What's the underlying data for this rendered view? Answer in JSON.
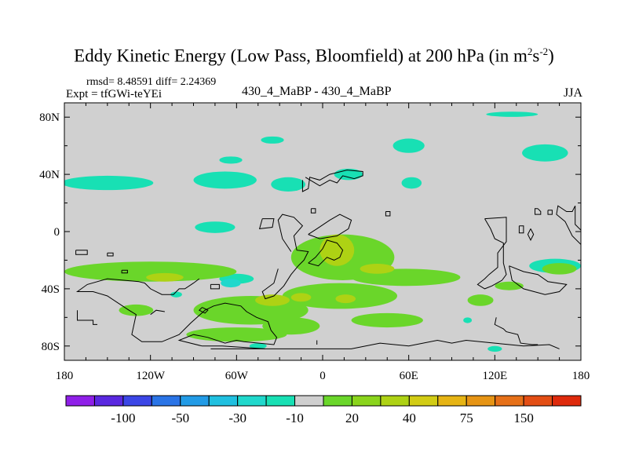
{
  "title": {
    "main": "Eddy Kinetic Energy (Low Pass, Bloomfield) at 200 hPa (in m",
    "sup1": "2",
    "mid": "s",
    "sup2": "-2",
    "close": ")"
  },
  "stats": "rmsd= 8.48591 diff= 2.24369",
  "experiment": "Expt = tfGWi-teYEi",
  "center_label": "430_4_MaBP - 430_4_MaBP",
  "season": "JJA",
  "chart_data": {
    "type": "heatmap",
    "projection": "cylindrical equidistant",
    "x_range": [
      -180,
      180
    ],
    "y_range": [
      -90,
      90
    ],
    "xticks": [
      {
        "value": -180,
        "label": "180"
      },
      {
        "value": -120,
        "label": "120W"
      },
      {
        "value": -60,
        "label": "60W"
      },
      {
        "value": 0,
        "label": "0"
      },
      {
        "value": 60,
        "label": "60E"
      },
      {
        "value": 120,
        "label": "120E"
      },
      {
        "value": 180,
        "label": "180"
      }
    ],
    "yticks": [
      {
        "value": 80,
        "label": "80N"
      },
      {
        "value": 40,
        "label": "40N"
      },
      {
        "value": 0,
        "label": "0"
      },
      {
        "value": -40,
        "label": "40S"
      },
      {
        "value": -80,
        "label": "80S"
      }
    ],
    "background_color": "#d0d0d0",
    "colorbar": {
      "colors": [
        "#8f1fe8",
        "#5a28e0",
        "#3b46e6",
        "#2a74e6",
        "#229be6",
        "#20c0e0",
        "#20d8cc",
        "#18e0b4",
        "#cfcfcf",
        "#6ad62a",
        "#8ad41c",
        "#aed214",
        "#d2cc14",
        "#e6b414",
        "#e69414",
        "#e67018",
        "#e34e14",
        "#de2a0c"
      ],
      "labels": [
        {
          "after_box": 2,
          "text": "-100"
        },
        {
          "after_box": 4,
          "text": "-50"
        },
        {
          "after_box": 6,
          "text": "-30"
        },
        {
          "after_box": 8,
          "text": "-10"
        },
        {
          "after_box": 10,
          "text": "20"
        },
        {
          "after_box": 12,
          "text": "40"
        },
        {
          "after_box": 14,
          "text": "75"
        },
        {
          "after_box": 16,
          "text": "150"
        }
      ]
    },
    "regions": [
      {
        "lon": -150,
        "lat": 34,
        "rx": 32,
        "ry": 5,
        "level": -10
      },
      {
        "lon": -68,
        "lat": 36,
        "rx": 22,
        "ry": 6,
        "level": -10
      },
      {
        "lon": -24,
        "lat": 33,
        "rx": 12,
        "ry": 5,
        "level": -10
      },
      {
        "lon": -64,
        "lat": 50,
        "rx": 8,
        "ry": 2.5,
        "level": -10
      },
      {
        "lon": -35,
        "lat": 64,
        "rx": 8,
        "ry": 2.5,
        "level": -10
      },
      {
        "lon": 60,
        "lat": 60,
        "rx": 11,
        "ry": 5,
        "level": -10
      },
      {
        "lon": 155,
        "lat": 55,
        "rx": 16,
        "ry": 6,
        "level": -10
      },
      {
        "lon": 132,
        "lat": 82,
        "rx": 18,
        "ry": 1.8,
        "level": -10
      },
      {
        "lon": 18,
        "lat": 40,
        "rx": 10,
        "ry": 4,
        "level": -10
      },
      {
        "lon": 62,
        "lat": 34,
        "rx": 7,
        "ry": 4,
        "level": -10
      },
      {
        "lon": -75,
        "lat": 3,
        "rx": 14,
        "ry": 4,
        "level": -10
      },
      {
        "lon": 162,
        "lat": -24,
        "rx": 18,
        "ry": 5,
        "level": -10
      },
      {
        "lon": -60,
        "lat": -33,
        "rx": 12,
        "ry": 3.5,
        "level": -10
      },
      {
        "lon": 14,
        "lat": -18,
        "rx": 36,
        "ry": 16,
        "level": 20
      },
      {
        "lon": 58,
        "lat": -32,
        "rx": 38,
        "ry": 6,
        "level": 20
      },
      {
        "lon": -120,
        "lat": -28,
        "rx": 60,
        "ry": 7,
        "level": 20
      },
      {
        "lon": 12,
        "lat": -45,
        "rx": 40,
        "ry": 9,
        "level": 20
      },
      {
        "lon": -50,
        "lat": -55,
        "rx": 40,
        "ry": 10,
        "level": 20
      },
      {
        "lon": -22,
        "lat": -66,
        "rx": 20,
        "ry": 6,
        "level": 20
      },
      {
        "lon": 45,
        "lat": -62,
        "rx": 25,
        "ry": 5,
        "level": 20
      },
      {
        "lon": 110,
        "lat": -48,
        "rx": 9,
        "ry": 4,
        "level": 20
      },
      {
        "lon": 165,
        "lat": -26,
        "rx": 12,
        "ry": 4,
        "level": 20
      },
      {
        "lon": -130,
        "lat": -55,
        "rx": 12,
        "ry": 4,
        "level": 20
      },
      {
        "lon": -60,
        "lat": -72,
        "rx": 35,
        "ry": 5,
        "level": 20
      },
      {
        "lon": 130,
        "lat": -38,
        "rx": 10,
        "ry": 3,
        "level": 20
      },
      {
        "lon": 10,
        "lat": -13,
        "rx": 12,
        "ry": 11,
        "level": 40
      },
      {
        "lon": -110,
        "lat": -32,
        "rx": 13,
        "ry": 3,
        "level": 40
      },
      {
        "lon": 38,
        "lat": -26,
        "rx": 12,
        "ry": 3.5,
        "level": 40
      },
      {
        "lon": -35,
        "lat": -48,
        "rx": 12,
        "ry": 4,
        "level": 40
      },
      {
        "lon": -15,
        "lat": -46,
        "rx": 7,
        "ry": 3,
        "level": 40
      },
      {
        "lon": -64,
        "lat": -36,
        "rx": 7,
        "ry": 3,
        "level": -30
      },
      {
        "lon": 16,
        "lat": -47,
        "rx": 7,
        "ry": 3,
        "level": 40
      },
      {
        "lon": 101,
        "lat": -62,
        "rx": 3,
        "ry": 2,
        "level": -10
      },
      {
        "lon": -102,
        "lat": -44,
        "rx": 4,
        "ry": 2,
        "level": -10
      },
      {
        "lon": 120,
        "lat": -82,
        "rx": 5,
        "ry": 2,
        "level": -10
      },
      {
        "lon": -45,
        "lat": -80,
        "rx": 6,
        "ry": 2,
        "level": -10
      }
    ],
    "coastlines": [
      [
        [
          -128,
          -35
        ],
        [
          -150,
          -33
        ],
        [
          -164,
          -37
        ],
        [
          -171,
          -42
        ],
        [
          -160,
          -42
        ],
        [
          -150,
          -45
        ],
        [
          -135,
          -55
        ],
        [
          -130,
          -58
        ],
        [
          -133,
          -72
        ],
        [
          -126,
          -77
        ],
        [
          -112,
          -77
        ],
        [
          -100,
          -72
        ],
        [
          -92,
          -64
        ],
        [
          -82,
          -55
        ],
        [
          -76,
          -52
        ],
        [
          -68,
          -50
        ],
        [
          -57,
          -52
        ],
        [
          -53,
          -56
        ],
        [
          -46,
          -60
        ],
        [
          -38,
          -63
        ],
        [
          -36,
          -69
        ],
        [
          -32,
          -74
        ],
        [
          -34,
          -79
        ],
        [
          -55,
          -77
        ],
        [
          -60,
          -76
        ],
        [
          -68,
          -78
        ],
        [
          -80,
          -74
        ],
        [
          -90,
          -72
        ],
        [
          -100,
          -76
        ],
        [
          -84,
          -80
        ],
        [
          -70,
          -80
        ],
        [
          -40,
          -82
        ]
      ],
      [
        [
          -78,
          -82
        ],
        [
          20,
          -82
        ],
        [
          40,
          -78
        ],
        [
          60,
          -80
        ],
        [
          80,
          -76
        ],
        [
          90,
          -78
        ],
        [
          100,
          -76
        ],
        [
          120,
          -78
        ],
        [
          140,
          -80
        ],
        [
          158,
          -79
        ],
        [
          165,
          -82
        ]
      ],
      [
        [
          -4,
          -79
        ],
        [
          -4,
          -76
        ]
      ],
      [
        [
          -31,
          -26
        ],
        [
          -34,
          -36
        ],
        [
          -42,
          -42
        ],
        [
          -40,
          -47
        ],
        [
          -34,
          -45
        ],
        [
          -27,
          -38
        ],
        [
          -22,
          -30
        ],
        [
          -17,
          -24
        ],
        [
          -13,
          -20
        ],
        [
          -10,
          -14
        ],
        [
          -18,
          -13
        ],
        [
          -20,
          -3
        ],
        [
          -14,
          4
        ],
        [
          -20,
          10
        ],
        [
          -28,
          12
        ],
        [
          -31,
          8
        ],
        [
          -28,
          -5
        ],
        [
          -22,
          -14
        ]
      ],
      [
        [
          -10,
          -2
        ],
        [
          -2,
          -5
        ],
        [
          10,
          -3
        ],
        [
          18,
          2
        ],
        [
          20,
          8
        ],
        [
          12,
          12
        ],
        [
          5,
          8
        ],
        [
          -4,
          2
        ],
        [
          -10,
          -2
        ]
      ],
      [
        [
          -10,
          -22
        ],
        [
          -5,
          -18
        ],
        [
          0,
          -12
        ],
        [
          3,
          -6
        ],
        [
          10,
          -8
        ],
        [
          14,
          -13
        ],
        [
          12,
          -18
        ],
        [
          8,
          -20
        ],
        [
          3,
          -18
        ],
        [
          -3,
          -24
        ],
        [
          -10,
          -22
        ]
      ],
      [
        [
          -14,
          36
        ],
        [
          -14,
          28
        ],
        [
          -10,
          30
        ],
        [
          -9,
          38
        ],
        [
          -2,
          36
        ],
        [
          5,
          40
        ],
        [
          17,
          43
        ],
        [
          28,
          42
        ],
        [
          28,
          39
        ],
        [
          22,
          37
        ],
        [
          14,
          39
        ],
        [
          10,
          34
        ],
        [
          5,
          36
        ],
        [
          -2,
          32
        ],
        [
          -12,
          38
        ]
      ],
      [
        [
          44,
          14
        ],
        [
          47,
          14
        ],
        [
          47,
          11
        ],
        [
          44,
          11
        ],
        [
          44,
          14
        ]
      ],
      [
        [
          -42,
          9
        ],
        [
          -44,
          2
        ],
        [
          -35,
          3
        ],
        [
          -34,
          9
        ],
        [
          -42,
          9
        ]
      ],
      [
        [
          -150,
          -15
        ],
        [
          -150,
          -17
        ],
        [
          -146,
          -17
        ],
        [
          -146,
          -15
        ],
        [
          -150,
          -15
        ]
      ],
      [
        [
          -172,
          -13
        ],
        [
          -172,
          -16
        ],
        [
          -164,
          -16
        ],
        [
          -164,
          -13
        ],
        [
          -172,
          -13
        ]
      ],
      [
        [
          -140,
          -27
        ],
        [
          -140,
          -29
        ],
        [
          -136,
          -29
        ],
        [
          -136,
          -27
        ],
        [
          -140,
          -27
        ]
      ],
      [
        [
          -78,
          -37
        ],
        [
          -72,
          -37
        ],
        [
          -72,
          -40
        ],
        [
          -78,
          -40
        ],
        [
          -78,
          -37
        ]
      ],
      [
        [
          -84,
          -53
        ],
        [
          -86,
          -55
        ],
        [
          -82,
          -57
        ],
        [
          -80,
          -55
        ],
        [
          -84,
          -53
        ]
      ],
      [
        [
          113,
          9
        ],
        [
          128,
          10
        ],
        [
          128,
          -7
        ],
        [
          122,
          -15
        ],
        [
          122,
          -25
        ],
        [
          116,
          -30
        ],
        [
          113,
          -33
        ],
        [
          108,
          -37
        ],
        [
          113,
          -40
        ],
        [
          118,
          -38
        ],
        [
          125,
          -34
        ],
        [
          128,
          -30
        ],
        [
          126,
          -22
        ],
        [
          126,
          -8
        ],
        [
          120,
          -5
        ],
        [
          117,
          2
        ],
        [
          113,
          9
        ]
      ],
      [
        [
          130,
          -24
        ],
        [
          140,
          -28
        ],
        [
          150,
          -30
        ],
        [
          157,
          -35
        ],
        [
          170,
          -37
        ],
        [
          165,
          -42
        ],
        [
          155,
          -44
        ],
        [
          140,
          -40
        ],
        [
          132,
          -34
        ],
        [
          130,
          -24
        ]
      ],
      [
        [
          137,
          4
        ],
        [
          137,
          -1
        ],
        [
          140,
          -1
        ],
        [
          140,
          4
        ],
        [
          137,
          4
        ]
      ],
      [
        [
          145,
          2
        ],
        [
          143,
          -2
        ],
        [
          145,
          -6
        ],
        [
          147,
          -2
        ],
        [
          145,
          2
        ]
      ],
      [
        [
          150,
          16
        ],
        [
          152,
          14
        ],
        [
          152,
          12
        ],
        [
          148,
          12
        ],
        [
          148,
          16
        ],
        [
          150,
          16
        ]
      ],
      [
        [
          185,
          -35
        ],
        [
          183,
          -12
        ],
        [
          174,
          -3
        ],
        [
          169,
          7
        ],
        [
          163,
          12
        ],
        [
          164,
          18
        ],
        [
          170,
          14
        ],
        [
          174,
          14
        ],
        [
          176,
          18
        ],
        [
          176,
          5
        ],
        [
          181,
          0
        ]
      ],
      [
        [
          157,
          15
        ],
        [
          157,
          12
        ],
        [
          160,
          12
        ],
        [
          160,
          15
        ],
        [
          157,
          15
        ]
      ],
      [
        [
          121,
          -60
        ],
        [
          120,
          -65
        ],
        [
          126,
          -68
        ],
        [
          128,
          -70
        ],
        [
          136,
          -72
        ],
        [
          138,
          -78
        ],
        [
          146,
          -79
        ],
        [
          150,
          -79
        ]
      ],
      [
        [
          -86,
          -33
        ],
        [
          -90,
          -36
        ],
        [
          -96,
          -40
        ],
        [
          -100,
          -40
        ],
        [
          -104,
          -44
        ],
        [
          -112,
          -44
        ],
        [
          -120,
          -40
        ],
        [
          -124,
          -36
        ],
        [
          -128,
          -35
        ]
      ],
      [
        [
          -171,
          -55
        ],
        [
          -171,
          -62
        ],
        [
          -160,
          -62
        ],
        [
          -160,
          -65
        ],
        [
          -157,
          -65
        ]
      ],
      [
        [
          -110,
          -56
        ],
        [
          -116,
          -55
        ],
        [
          -120,
          -58
        ]
      ],
      [
        [
          -8,
          16
        ],
        [
          -8,
          13
        ],
        [
          -5,
          13
        ],
        [
          -5,
          16
        ],
        [
          -8,
          16
        ]
      ]
    ]
  }
}
